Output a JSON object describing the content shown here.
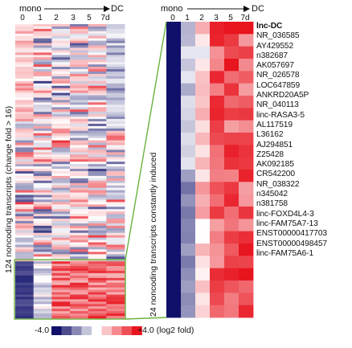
{
  "left_panel": {
    "axis_start": "mono",
    "axis_end": "DC",
    "columns": [
      "0",
      "1",
      "2",
      "3",
      "5",
      "7d"
    ],
    "side_label": "124 noncoding transcripts (change fold > 16)"
  },
  "right_panel": {
    "axis_start": "mono",
    "axis_end": "DC",
    "columns": [
      "0",
      "1",
      "2",
      "3",
      "5",
      "7d"
    ],
    "side_label": "24 noncoding transcripts constantly induced",
    "genes": [
      "lnc-DC",
      "NR_036585",
      "AY429552",
      "n382687",
      "AK057697",
      "NR_026578",
      "LOC647859",
      "ANKRD20A5P",
      "NR_040113",
      "linc-RASA3-5",
      "AL117519",
      "L36162",
      "AJ294851",
      "Z25428",
      "AK092185",
      "CR542200",
      "NR_038322",
      "n345042",
      "n381758",
      "linc-FOXD4L4-3",
      "linc-FAM75A7-13",
      "ENST00000417703",
      "ENST00000498457",
      "linc-FAM75A6-1"
    ]
  },
  "legend": {
    "min_label": "-4.0",
    "max_label": "+4.0 (log2 fold)",
    "low_color": "#10106a",
    "mid_color": "#ffffff",
    "high_color": "#e8141e"
  },
  "colors": {
    "highlight_box": "#6ab23e"
  }
}
